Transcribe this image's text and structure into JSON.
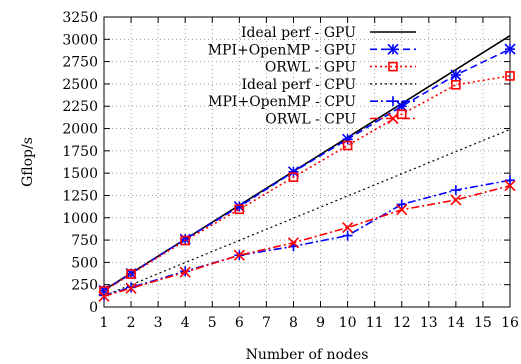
{
  "chart_data": {
    "type": "line",
    "title": "",
    "xlabel": "Number of nodes",
    "ylabel": "Gflop/s",
    "xlim": [
      1,
      16
    ],
    "ylim": [
      0,
      3250
    ],
    "x_ticks": [
      "1",
      "2",
      "3",
      "4",
      "5",
      "6",
      "7",
      "8",
      "9",
      "10",
      "11",
      "12",
      "13",
      "14",
      "15",
      "16"
    ],
    "y_ticks": [
      "0",
      "250",
      "500",
      "750",
      "1000",
      "1250",
      "1500",
      "1750",
      "2000",
      "2250",
      "2500",
      "2750",
      "3000",
      "3250"
    ],
    "grid": true,
    "legend_position": "top-left",
    "series": [
      {
        "name": "Ideal perf - GPU",
        "color": "#000000",
        "dash": "solid",
        "marker": "none",
        "x": [
          1,
          16
        ],
        "y": [
          190,
          3040
        ]
      },
      {
        "name": "MPI+OpenMP - GPU",
        "color": "#0000ff",
        "dash": "dashed",
        "marker": "asterisk",
        "x": [
          1,
          2,
          4,
          6,
          8,
          10,
          12,
          14,
          16
        ],
        "y": [
          185,
          375,
          760,
          1125,
          1515,
          1880,
          2250,
          2600,
          2890
        ]
      },
      {
        "name": "ORWL - GPU",
        "color": "#ff0000",
        "dash": "dotted",
        "marker": "square",
        "x": [
          1,
          2,
          4,
          6,
          8,
          10,
          12,
          14,
          16
        ],
        "y": [
          180,
          370,
          745,
          1095,
          1455,
          1810,
          2160,
          2490,
          2590
        ]
      },
      {
        "name": "Ideal perf - CPU",
        "color": "#000000",
        "dash": "dotted",
        "marker": "none",
        "x": [
          1,
          16
        ],
        "y": [
          125,
          1990
        ]
      },
      {
        "name": "MPI+OpenMP - CPU",
        "color": "#0000ff",
        "dash": "dashdot",
        "marker": "plus",
        "x": [
          1,
          2,
          4,
          6,
          8,
          10,
          12,
          14,
          16
        ],
        "y": [
          130,
          220,
          400,
          580,
          680,
          800,
          1150,
          1310,
          1420
        ]
      },
      {
        "name": "ORWL - CPU",
        "color": "#ff0000",
        "dash": "dashdot",
        "marker": "cross",
        "x": [
          1,
          2,
          4,
          6,
          8,
          10,
          12,
          14,
          16
        ],
        "y": [
          120,
          210,
          390,
          580,
          720,
          890,
          1090,
          1200,
          1360
        ]
      }
    ]
  }
}
